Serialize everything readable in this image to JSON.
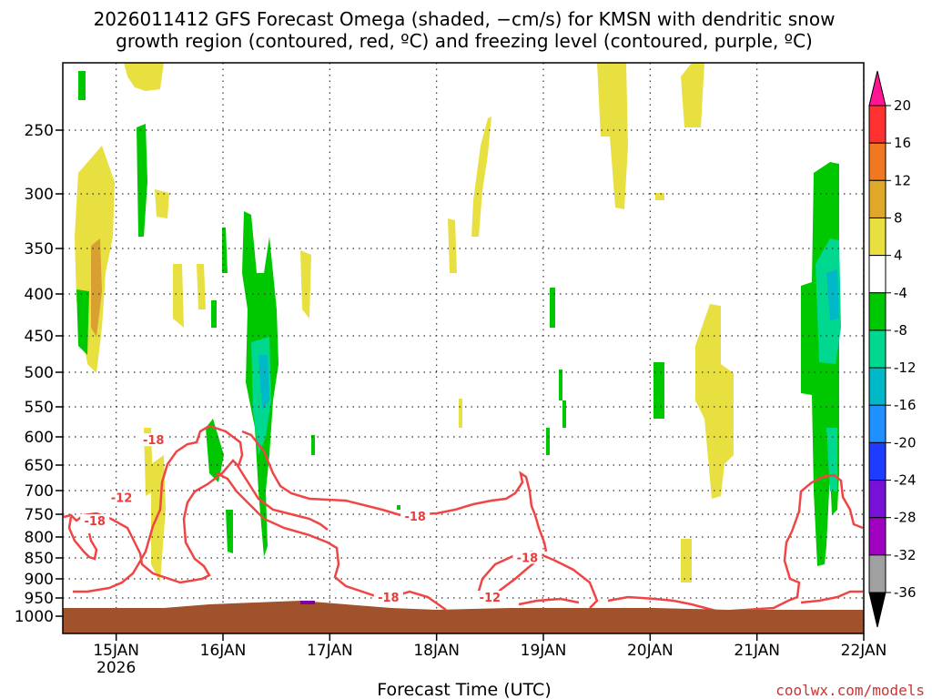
{
  "chart_data": {
    "type": "time-height cross section",
    "title_line1": "2026011412 GFS Forecast Omega (shaded, −cm/s) for KMSN with dendritic snow",
    "title_line2": "growth region (contoured, red, ºC) and freezing level (contoured, purple, ºC)",
    "xlabel": "Forecast Time (UTC)",
    "x_ticks": [
      {
        "label": "15JAN",
        "sub": "2026",
        "day": 15
      },
      {
        "label": "16JAN",
        "day": 16
      },
      {
        "label": "17JAN",
        "day": 17
      },
      {
        "label": "18JAN",
        "day": 18
      },
      {
        "label": "19JAN",
        "day": 19
      },
      {
        "label": "20JAN",
        "day": 20
      },
      {
        "label": "21JAN",
        "day": 21
      },
      {
        "label": "22JAN",
        "day": 22
      }
    ],
    "x_range_days": [
      14.5,
      22.0
    ],
    "y_ticks": [
      250,
      300,
      350,
      400,
      450,
      500,
      550,
      600,
      650,
      700,
      750,
      800,
      850,
      900,
      950,
      1000
    ],
    "y_range_hpa": [
      200,
      1025
    ],
    "colorbar": {
      "levels": [
        "20",
        "16",
        "12",
        "8",
        "4",
        "-4",
        "-8",
        "-12",
        "-16",
        "-20",
        "-24",
        "-28",
        "-32",
        "-36"
      ],
      "colors": [
        "#ff1493",
        "#ff3030",
        "#f07820",
        "#e0a828",
        "#e8e040",
        "#ffffff",
        "#00c800",
        "#00d890",
        "#00b8c8",
        "#1e90ff",
        "#1e3cff",
        "#7810d8",
        "#a000c0",
        "#a0a0a0",
        "#000000"
      ]
    },
    "contour_labels": [
      "-18",
      "-12",
      "-18",
      "-18",
      "-12",
      "-18",
      "-18"
    ],
    "credit": "coolwx.com/models"
  }
}
